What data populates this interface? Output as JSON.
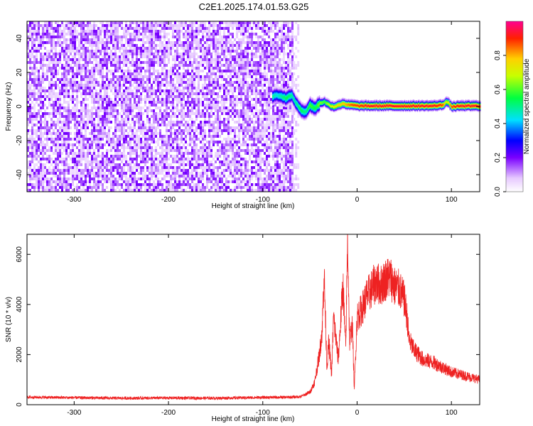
{
  "title": "C2E1.2025.174.01.53.G25",
  "colors": {
    "snr_line": "#ee2222",
    "axis": "#000000",
    "background": "#ffffff"
  },
  "chart_data": [
    {
      "type": "heatmap",
      "xlabel": "Height of straight line (km)",
      "ylabel": "Frequency (Hz)",
      "xlim": [
        -350,
        130
      ],
      "ylim": [
        -50,
        50
      ],
      "xticks": [
        -300,
        -200,
        -100,
        0,
        100
      ],
      "yticks": [
        -40,
        -20,
        0,
        20,
        40
      ],
      "grid": false,
      "colorbar": {
        "label": "Normalized spectral amplitude",
        "range": [
          0,
          1
        ],
        "ticks": [
          0.0,
          0.2,
          0.4,
          0.6,
          0.8
        ],
        "tick_labels": [
          "0.0",
          "0.2",
          "0.4",
          "0.6",
          "0.8"
        ]
      },
      "noise_region": {
        "x_range": [
          -350,
          -68
        ],
        "amplitude": 0.22
      },
      "signal_track": {
        "x": [
          -90,
          -85,
          -80,
          -75,
          -70,
          -65,
          -60,
          -55,
          -50,
          -45,
          -40,
          -35,
          -30,
          -25,
          -20,
          -15,
          -10,
          -5,
          0,
          10,
          20,
          30,
          40,
          50,
          60,
          70,
          80,
          90,
          95,
          100,
          110,
          120,
          130
        ],
        "frequency": [
          6,
          7,
          6,
          5,
          7,
          2,
          -2,
          -3,
          1,
          -1,
          2,
          3,
          1,
          0,
          1,
          2,
          1,
          1,
          0.5,
          0.5,
          0.5,
          0.5,
          0.5,
          0.5,
          0.5,
          0.5,
          0.5,
          1,
          3,
          0,
          0.5,
          0.5,
          0.5
        ],
        "amplitude": [
          0.5,
          0.45,
          0.5,
          0.55,
          0.5,
          0.5,
          0.55,
          0.5,
          0.6,
          0.55,
          0.65,
          0.6,
          0.7,
          0.75,
          0.8,
          0.8,
          0.85,
          0.9,
          0.9,
          0.95,
          0.95,
          0.95,
          0.95,
          0.95,
          0.95,
          0.95,
          0.95,
          0.9,
          0.7,
          0.9,
          0.95,
          0.95,
          0.95
        ]
      }
    },
    {
      "type": "line",
      "xlabel": "Height of straight line (km)",
      "ylabel": "SNR (10 * v/v)",
      "xlim": [
        -350,
        130
      ],
      "ylim": [
        0,
        6800
      ],
      "xticks": [
        -300,
        -200,
        -100,
        0,
        100
      ],
      "yticks": [
        0,
        2000,
        4000,
        6000
      ],
      "grid": false,
      "series": [
        {
          "x": [
            -350,
            -300,
            -250,
            -200,
            -150,
            -100,
            -70,
            -60,
            -50,
            -45,
            -40,
            -37,
            -35,
            -32,
            -30,
            -27,
            -25,
            -20,
            -15,
            -12,
            -10,
            -8,
            -5,
            -3,
            0,
            5,
            10,
            15,
            20,
            25,
            30,
            35,
            40,
            45,
            50,
            53,
            55,
            60,
            70,
            80,
            90,
            100,
            110,
            120,
            130
          ],
          "values": [
            300,
            280,
            260,
            270,
            260,
            290,
            300,
            320,
            500,
            900,
            2000,
            3000,
            5300,
            1500,
            2500,
            1200,
            3500,
            1800,
            4800,
            2200,
            6800,
            2500,
            3200,
            600,
            3500,
            3800,
            4300,
            4600,
            4900,
            4750,
            5000,
            5100,
            4700,
            4600,
            4200,
            3500,
            2600,
            2200,
            1800,
            1700,
            1500,
            1300,
            1200,
            1100,
            1000
          ]
        }
      ]
    }
  ]
}
